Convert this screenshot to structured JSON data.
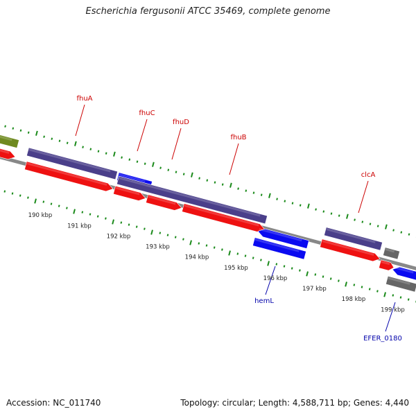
{
  "title": "Escherichia fergusonii ATCC 35469, complete genome",
  "footer": {
    "accession": "Accession: NC_011740",
    "topology": "Topology: circular; Length: 4,588,711 bp; Genes: 4,440"
  },
  "colors": {
    "backbone": "#888888",
    "tick": "#1a8a1a",
    "gene_label_forward": "#cc0000",
    "gene_label_reverse": "#0000aa",
    "cds_forward": "#ee1111",
    "cds_reverse": "#0a0af0",
    "gene_purple": "#4a3f8a",
    "gene_olive": "#6f8a20",
    "gene_gray": "#666666"
  },
  "scale_labels": [
    "190 kbp",
    "191 kbp",
    "192 kbp",
    "193 kbp",
    "194 kbp",
    "195 kbp",
    "196 kbp",
    "197 kbp",
    "198 kbp",
    "199 kbp"
  ],
  "gene_labels": [
    {
      "name": "fhuA",
      "strand": "forward"
    },
    {
      "name": "fhuC",
      "strand": "forward"
    },
    {
      "name": "fhuD",
      "strand": "forward"
    },
    {
      "name": "fhuB",
      "strand": "forward"
    },
    {
      "name": "clcA",
      "strand": "forward"
    },
    {
      "name": "hemL",
      "strand": "reverse"
    },
    {
      "name": "EFER_0180",
      "strand": "reverse"
    }
  ]
}
